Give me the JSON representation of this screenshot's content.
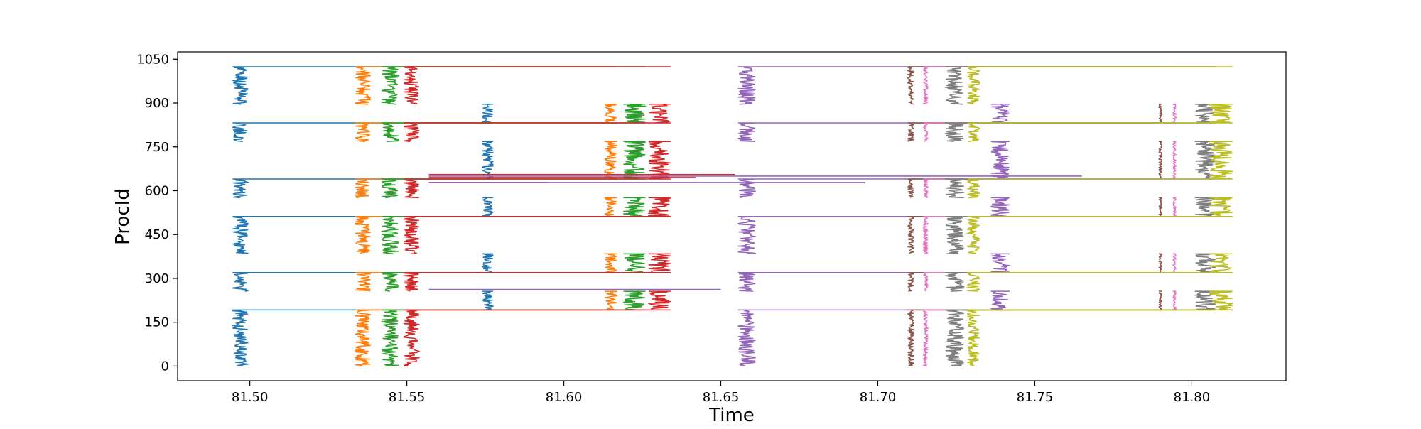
{
  "chart_data": {
    "type": "line",
    "title": "",
    "xlabel": "Time",
    "ylabel": "ProcId",
    "xlim": [
      81.477,
      81.83
    ],
    "ylim": [
      -50,
      1075
    ],
    "xticks": [
      81.5,
      81.55,
      81.6,
      81.65,
      81.7,
      81.75,
      81.8
    ],
    "xtick_labels": [
      "81.50",
      "81.55",
      "81.60",
      "81.65",
      "81.70",
      "81.75",
      "81.80"
    ],
    "yticks": [
      0,
      150,
      300,
      450,
      600,
      750,
      900,
      1050
    ],
    "ytick_labels": [
      "0",
      "150",
      "300",
      "450",
      "600",
      "750",
      "900",
      "1050"
    ],
    "grid": false,
    "legend": "none",
    "group_blocks": [
      [
        0,
        192
      ],
      [
        256,
        320
      ],
      [
        384,
        512
      ],
      [
        576,
        640
      ],
      [
        768,
        832
      ],
      [
        896,
        1024
      ]
    ],
    "group_rungs": [
      [
        0,
        192
      ],
      [
        192,
        256
      ],
      [
        256,
        320
      ],
      [
        320,
        384
      ],
      [
        384,
        512
      ],
      [
        512,
        576
      ],
      [
        576,
        640
      ],
      [
        640,
        768
      ],
      [
        768,
        832
      ],
      [
        832,
        896
      ],
      [
        896,
        1024
      ]
    ],
    "series": [
      {
        "color": "#1f77b4",
        "cluster_ranges": [
          [
            81.4945,
            81.4995
          ],
          [
            81.574,
            81.5775
          ]
        ],
        "end": 81.5775
      },
      {
        "color": "#ff7f0e",
        "cluster_ranges": [
          [
            81.5335,
            81.5385
          ],
          [
            81.613,
            81.617
          ]
        ],
        "end": 81.617
      },
      {
        "color": "#2ca02c",
        "cluster_ranges": [
          [
            81.542,
            81.5475
          ],
          [
            81.619,
            81.626
          ]
        ],
        "end": 81.626
      },
      {
        "color": "#d62728",
        "cluster_ranges": [
          [
            81.549,
            81.554
          ],
          [
            81.627,
            81.634
          ]
        ],
        "end": 81.634
      },
      {
        "color": "#9467bd",
        "cluster_ranges": [
          [
            81.6555,
            81.661
          ],
          [
            81.736,
            81.742
          ]
        ],
        "end": 81.742
      },
      {
        "color": "#8c564b",
        "cluster_ranges": [
          [
            81.7095,
            81.7115
          ],
          [
            81.7895,
            81.7905
          ]
        ],
        "end": 81.7905
      },
      {
        "color": "#e377c2",
        "cluster_ranges": [
          [
            81.7145,
            81.716
          ],
          [
            81.794,
            81.795
          ]
        ],
        "end": 81.795
      },
      {
        "color": "#7f7f7f",
        "cluster_ranges": [
          [
            81.7215,
            81.7275
          ],
          [
            81.801,
            81.8075
          ]
        ],
        "end": 81.8075
      },
      {
        "color": "#bcbd22",
        "cluster_ranges": [
          [
            81.7285,
            81.7325
          ],
          [
            81.8055,
            81.813
          ]
        ],
        "end": 81.813
      }
    ],
    "spikes": [
      {
        "color": "#d62728",
        "y": 655,
        "x": 81.6545
      },
      {
        "color": "#d62728",
        "y": 628,
        "x": 81.595
      },
      {
        "color": "#d62728",
        "y": 645,
        "x": 81.642
      },
      {
        "color": "#9467bd",
        "y": 650,
        "x": 81.765
      },
      {
        "color": "#9467bd",
        "y": 628,
        "x": 81.696
      },
      {
        "color": "#9467bd",
        "y": 262,
        "x": 81.65
      }
    ]
  }
}
